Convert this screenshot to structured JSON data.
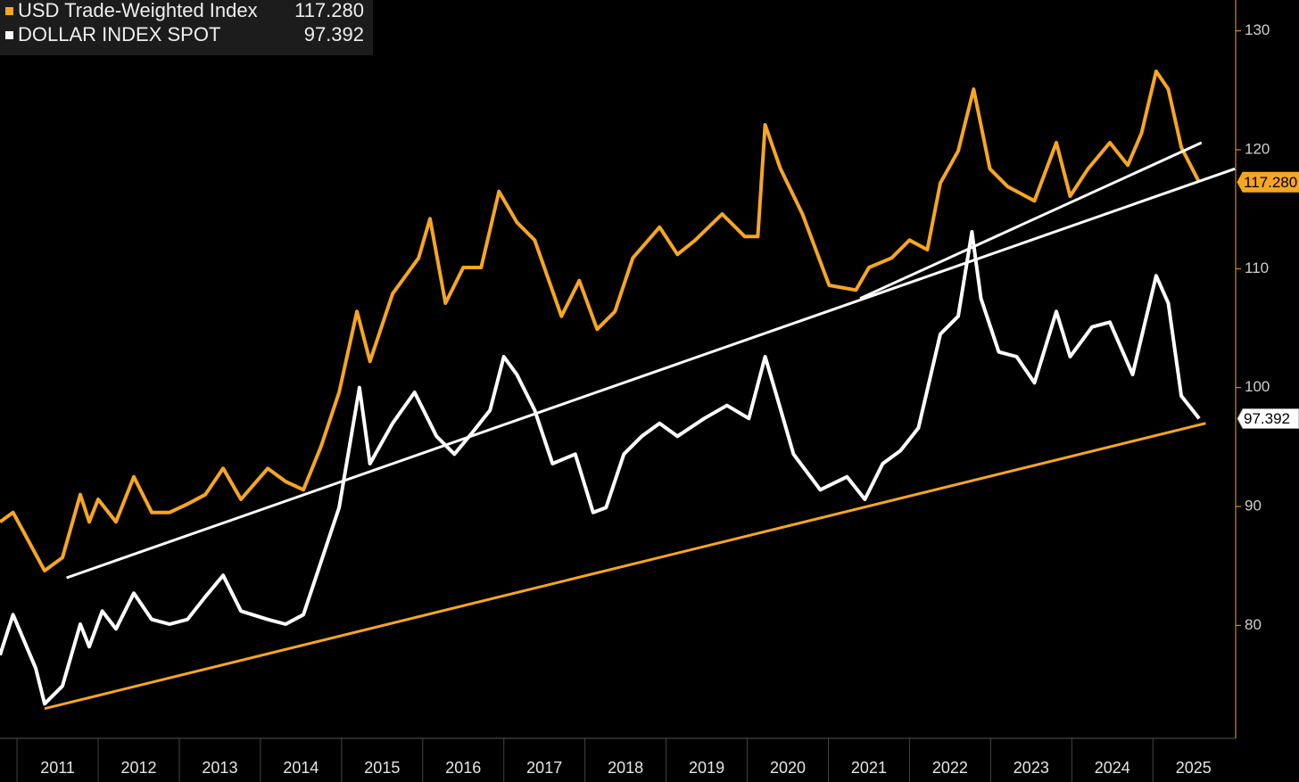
{
  "chart_data": {
    "type": "line",
    "xlim": [
      2010.79,
      2026.02
    ],
    "xticks": [
      2011,
      2012,
      2013,
      2014,
      2015,
      2016,
      2017,
      2018,
      2019,
      2020,
      2021,
      2022,
      2023,
      2024,
      2025
    ],
    "ylim": [
      70.5,
      132.6
    ],
    "yticks": [
      80,
      90,
      100,
      110,
      120,
      130
    ],
    "axis_color": "#f5a623",
    "series": [
      {
        "name": "USD Trade-Weighted Index",
        "color": "#f5a623",
        "last_value": {
          "value": 117.28,
          "label": "117.280"
        },
        "x": [
          2010.79,
          2010.95,
          2011.34,
          2011.56,
          2011.78,
          2011.89,
          2012.0,
          2012.22,
          2012.44,
          2012.66,
          2012.88,
          2013.1,
          2013.32,
          2013.54,
          2013.76,
          2014.09,
          2014.31,
          2014.53,
          2014.75,
          2014.97,
          2015.19,
          2015.35,
          2015.63,
          2015.95,
          2016.09,
          2016.28,
          2016.5,
          2016.72,
          2016.94,
          2017.16,
          2017.38,
          2017.71,
          2017.93,
          2018.15,
          2018.37,
          2018.59,
          2018.92,
          2019.14,
          2019.36,
          2019.69,
          2019.97,
          2020.13,
          2020.22,
          2020.41,
          2020.68,
          2021.01,
          2021.34,
          2021.5,
          2021.78,
          2022.0,
          2022.22,
          2022.38,
          2022.6,
          2022.79,
          2022.99,
          2023.21,
          2023.54,
          2023.81,
          2023.98,
          2024.2,
          2024.47,
          2024.69,
          2024.86,
          2025.04,
          2025.19,
          2025.35,
          2025.57
        ],
        "values": [
          88.7,
          89.5,
          84.6,
          85.7,
          91.0,
          88.7,
          90.6,
          88.7,
          92.5,
          89.5,
          89.5,
          90.2,
          91.0,
          93.2,
          90.6,
          93.2,
          92.1,
          91.4,
          95.1,
          99.6,
          106.4,
          102.2,
          107.9,
          110.9,
          114.2,
          107.1,
          110.1,
          110.1,
          116.5,
          113.9,
          112.4,
          106.0,
          109.0,
          104.9,
          106.4,
          110.9,
          113.5,
          111.2,
          112.4,
          114.6,
          112.7,
          112.7,
          122.1,
          118.4,
          114.6,
          108.6,
          108.2,
          110.1,
          110.9,
          112.4,
          111.6,
          117.2,
          119.9,
          125.1,
          118.4,
          116.9,
          115.7,
          120.6,
          116.1,
          118.4,
          120.6,
          118.7,
          121.4,
          126.6,
          125.1,
          120.2,
          117.28
        ]
      },
      {
        "name": "DOLLAR INDEX SPOT",
        "color": "#ffffff",
        "last_value": {
          "value": 97.392,
          "label": "97.392"
        },
        "x": [
          2010.79,
          2010.95,
          2011.23,
          2011.34,
          2011.56,
          2011.78,
          2011.89,
          2012.05,
          2012.22,
          2012.44,
          2012.66,
          2012.88,
          2013.1,
          2013.32,
          2013.54,
          2013.76,
          2014.09,
          2014.31,
          2014.53,
          2014.75,
          2014.97,
          2015.22,
          2015.35,
          2015.63,
          2015.9,
          2016.17,
          2016.39,
          2016.61,
          2016.83,
          2017.0,
          2017.16,
          2017.38,
          2017.6,
          2017.88,
          2018.1,
          2018.26,
          2018.48,
          2018.7,
          2018.92,
          2019.14,
          2019.47,
          2019.75,
          2020.02,
          2020.22,
          2020.35,
          2020.57,
          2020.9,
          2021.23,
          2021.45,
          2021.67,
          2021.89,
          2022.11,
          2022.38,
          2022.6,
          2022.77,
          2022.88,
          2023.1,
          2023.32,
          2023.54,
          2023.81,
          2023.98,
          2024.25,
          2024.47,
          2024.75,
          2025.04,
          2025.19,
          2025.35,
          2025.57
        ],
        "values": [
          77.5,
          80.9,
          76.4,
          73.4,
          74.9,
          80.1,
          78.2,
          81.2,
          79.7,
          82.7,
          80.5,
          80.1,
          80.5,
          82.4,
          84.2,
          81.2,
          80.5,
          80.1,
          80.9,
          85.4,
          89.9,
          100.0,
          93.6,
          97.0,
          99.6,
          95.9,
          94.4,
          96.2,
          98.1,
          102.6,
          101.1,
          98.1,
          93.6,
          94.4,
          89.5,
          89.9,
          94.4,
          95.9,
          97.0,
          95.9,
          97.4,
          98.5,
          97.4,
          102.6,
          99.6,
          94.4,
          91.4,
          92.5,
          90.6,
          93.6,
          94.7,
          96.6,
          104.5,
          106.0,
          113.1,
          107.5,
          103.0,
          102.6,
          100.4,
          106.4,
          102.6,
          105.1,
          105.5,
          101.1,
          109.4,
          107.1,
          99.3,
          97.392
        ]
      }
    ],
    "trendlines": [
      {
        "color": "#ffffff",
        "x": [
          2011.61,
          2026.01
        ],
        "values": [
          84.0,
          118.4
        ]
      },
      {
        "color": "#ffffff",
        "x": [
          2021.39,
          2025.6
        ],
        "values": [
          107.5,
          120.6
        ]
      },
      {
        "color": "#f5a623",
        "x": [
          2011.34,
          2025.65
        ],
        "values": [
          73.0,
          97.0
        ]
      }
    ]
  }
}
